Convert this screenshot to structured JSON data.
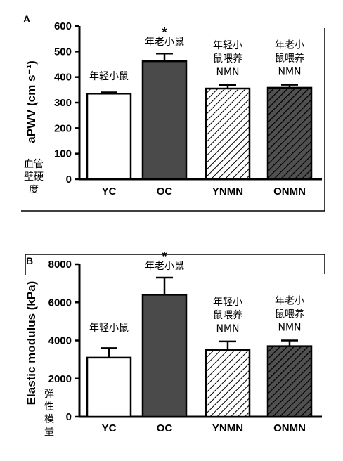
{
  "chart_data": [
    {
      "type": "bar",
      "panel": "A",
      "categories": [
        "YC",
        "OC",
        "YNMN",
        "ONMN"
      ],
      "values": [
        335,
        462,
        355,
        358
      ],
      "errors": [
        5,
        30,
        14,
        12
      ],
      "ylim": [
        0,
        600
      ],
      "yticks": [
        "0",
        "100",
        "200",
        "300",
        "400",
        "500",
        "600"
      ],
      "ylabel": "aPWV (cm s⁻¹)",
      "ylabel_cn": [
        "血管",
        "壁硬",
        "度"
      ],
      "significance": [
        "",
        "*",
        "",
        ""
      ],
      "annotations": [
        [
          "年轻小鼠"
        ],
        [
          "年老小鼠"
        ],
        [
          "年轻小",
          "鼠喂养",
          "NMN"
        ],
        [
          "年老小",
          "鼠喂养",
          "NMN"
        ]
      ],
      "bar_styles": [
        "white",
        "dark",
        "hatch-light",
        "hatch-dark"
      ],
      "colors": {
        "dark": "#4a4a4a",
        "hatch_dark_bg": "#505050",
        "outline": "#000000"
      }
    },
    {
      "type": "bar",
      "panel": "B",
      "categories": [
        "YC",
        "OC",
        "YNMN",
        "ONMN"
      ],
      "values": [
        3100,
        6400,
        3500,
        3700
      ],
      "errors": [
        500,
        900,
        450,
        300
      ],
      "ylim": [
        0,
        8000
      ],
      "yticks": [
        "0",
        "2000",
        "4000",
        "6000",
        "8000"
      ],
      "ylabel": "Elastic modulus (kPa)",
      "ylabel_cn": [
        "弹",
        "性",
        "模",
        "量"
      ],
      "significance": [
        "",
        "*",
        "",
        ""
      ],
      "annotations": [
        [
          "年轻小鼠"
        ],
        [
          "年老小鼠"
        ],
        [
          "年轻小",
          "鼠喂养",
          "NMN"
        ],
        [
          "年老小",
          "鼠喂养",
          "NMN"
        ]
      ],
      "bar_styles": [
        "white",
        "dark",
        "hatch-light",
        "hatch-dark"
      ],
      "colors": {
        "dark": "#4a4a4a",
        "hatch_dark_bg": "#505050",
        "outline": "#000000"
      }
    }
  ]
}
